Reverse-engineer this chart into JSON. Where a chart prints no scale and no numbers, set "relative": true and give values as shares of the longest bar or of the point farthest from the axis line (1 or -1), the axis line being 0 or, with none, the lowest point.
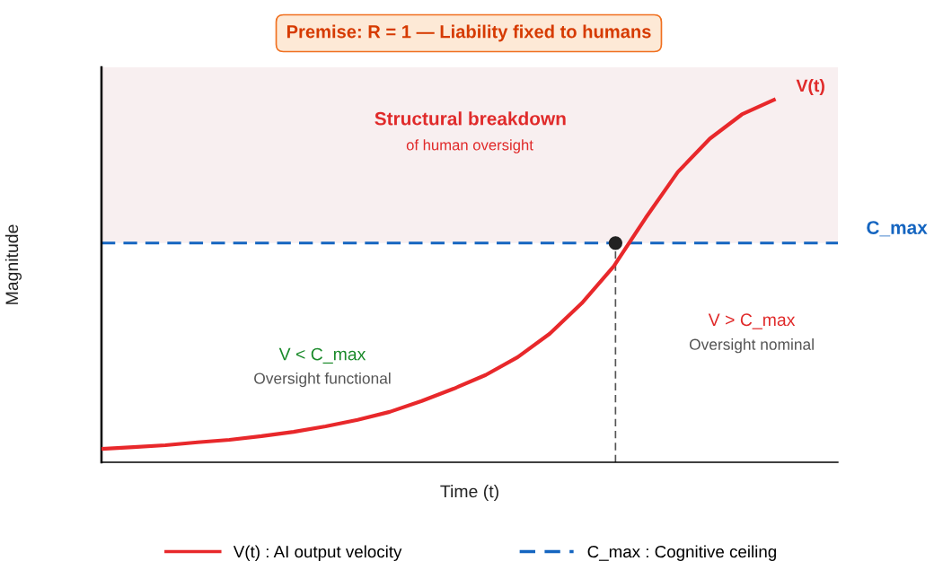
{
  "chart_data": {
    "type": "line",
    "relative": true,
    "title": "Premise: R = 1 — Liability fixed to humans",
    "xlabel": "Time (t)",
    "ylabel": "Magnitude",
    "categories": [
      null,
      null,
      null,
      null,
      null,
      null,
      null,
      null,
      null,
      null,
      null,
      null,
      null,
      null,
      null,
      null,
      null,
      null,
      null,
      null,
      null,
      null,
      null,
      null
    ],
    "series": [
      {
        "name": "V(t) : AI output velocity",
        "color": "#e8282b",
        "values": [
          0.037,
          0.042,
          0.047,
          0.055,
          0.062,
          0.072,
          0.084,
          0.099,
          0.117,
          0.139,
          0.169,
          0.203,
          0.241,
          0.29,
          0.355,
          0.439,
          0.541,
          0.675,
          0.801,
          0.893,
          0.96,
          1.0,
          null,
          null
        ]
      }
    ],
    "ref_lines": [
      {
        "axis": "y",
        "value": 0.605,
        "label": "C_max",
        "color": "#1565c0",
        "line_style": "dashed"
      }
    ],
    "bands": [
      {
        "axis": "y",
        "from": 0.605,
        "to": 1.09,
        "color": "#f8eff0"
      }
    ],
    "annotations": [
      "Structural breakdown",
      "of human oversight",
      "V < C_max",
      "Oversight functional",
      "V > C_max",
      "Oversight nominal",
      "V(t)",
      "C_max : Cognitive ceiling"
    ],
    "legend": "bottom"
  }
}
